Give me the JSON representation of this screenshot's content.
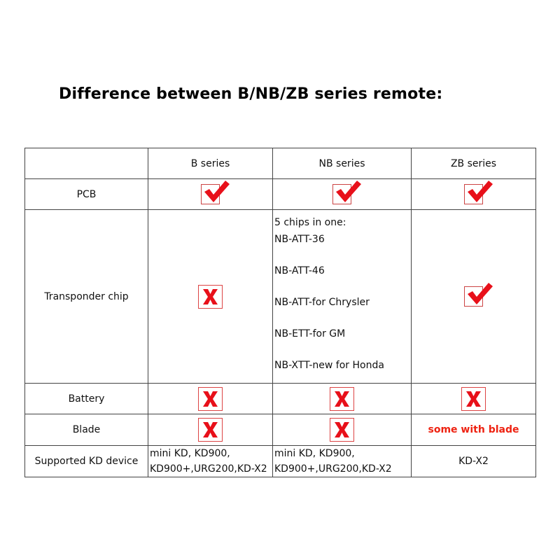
{
  "title": "Difference between B/NB/ZB series remote:",
  "colors": {
    "mark": "#e8101a",
    "accent_text": "#e21111"
  },
  "headers": [
    "",
    "B series",
    "NB series",
    "ZB series"
  ],
  "rows": {
    "pcb": {
      "label": "PCB",
      "b": "check-icon",
      "nb": "check-icon",
      "zb": "check-icon"
    },
    "transponder": {
      "label": "Transponder chip",
      "b": "x-icon",
      "nb": [
        "5 chips in one:",
        "NB-ATT-36",
        "NB-ATT-46",
        "NB-ATT-for Chrysler",
        "NB-ETT-for GM",
        "NB-XTT-new for Honda"
      ],
      "zb": "check-icon"
    },
    "battery": {
      "label": "Battery",
      "b": "x-icon",
      "nb": "x-icon",
      "zb": "x-icon"
    },
    "blade": {
      "label": "Blade",
      "b": "x-icon",
      "nb": "x-icon",
      "zb": "some with blade"
    },
    "kd": {
      "label": "Supported KD device",
      "b": [
        "mini KD, KD900,",
        "KD900+,URG200,KD-X2"
      ],
      "nb": [
        "mini KD, KD900,",
        "KD900+,URG200,KD-X2"
      ],
      "zb": "KD-X2"
    }
  }
}
